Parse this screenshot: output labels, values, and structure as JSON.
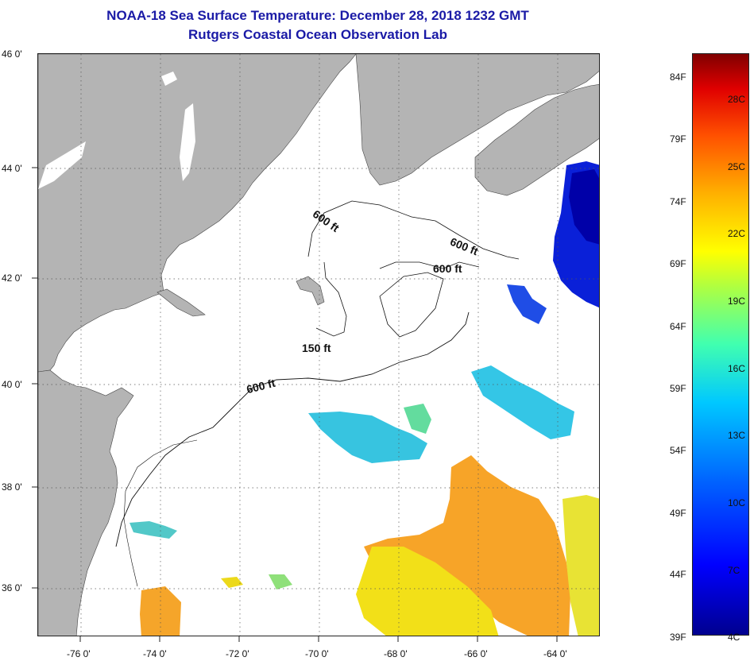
{
  "title": {
    "line1": "NOAA-18 Sea Surface Temperature:  December 28, 2018 1232 GMT",
    "line2": "Rutgers Coastal Ocean Observation Lab"
  },
  "axes": {
    "latitude_labels": [
      "46 0'",
      "44 0'",
      "42 0'",
      "40 0'",
      "38 0'",
      "36 0'"
    ],
    "longitude_labels": [
      "-76 0'",
      "-74 0'",
      "-72 0'",
      "-70 0'",
      "-68 0'",
      "-66 0'",
      "-64 0'"
    ]
  },
  "depth_contours": {
    "labels": [
      "600 ft",
      "600 ft",
      "600 ft",
      "150 ft",
      "600 ft"
    ]
  },
  "colors": {
    "land": "#b4b4b4",
    "ocean_nodata": "#ffffff",
    "title": "#1a1aa6"
  },
  "colorbar": {
    "fahrenheit": [
      "84F",
      "79F",
      "74F",
      "69F",
      "64F",
      "59F",
      "54F",
      "49F",
      "44F",
      "39F"
    ],
    "celsius": [
      "28C",
      "25C",
      "22C",
      "19C",
      "16C",
      "13C",
      "10C",
      "7C",
      "4C"
    ]
  }
}
